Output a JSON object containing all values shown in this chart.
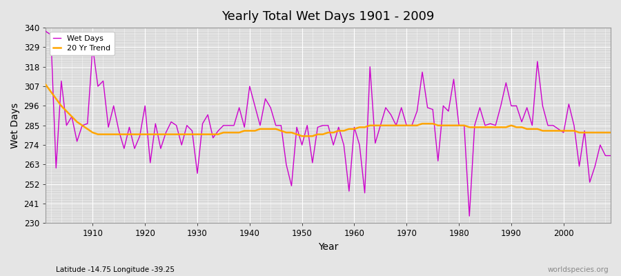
{
  "title": "Yearly Total Wet Days 1901 - 2009",
  "xlabel": "Year",
  "ylabel": "Wet Days",
  "background_color": "#e5e5e5",
  "plot_bg_color": "#d8d8d8",
  "wet_days_color": "#cc00cc",
  "trend_color": "#ffa500",
  "ylim": [
    230,
    340
  ],
  "yticks": [
    230,
    241,
    252,
    263,
    274,
    285,
    296,
    307,
    318,
    329,
    340
  ],
  "xlim": [
    1901,
    2009
  ],
  "xticks": [
    1910,
    1920,
    1930,
    1940,
    1950,
    1960,
    1970,
    1980,
    1990,
    2000
  ],
  "footer_left": "Latitude -14.75 Longitude -39.25",
  "footer_right": "worldspecies.org",
  "years": [
    1901,
    1902,
    1903,
    1904,
    1905,
    1906,
    1907,
    1908,
    1909,
    1910,
    1911,
    1912,
    1913,
    1914,
    1915,
    1916,
    1917,
    1918,
    1919,
    1920,
    1921,
    1922,
    1923,
    1924,
    1925,
    1926,
    1927,
    1928,
    1929,
    1930,
    1931,
    1932,
    1933,
    1934,
    1935,
    1936,
    1937,
    1938,
    1939,
    1940,
    1941,
    1942,
    1943,
    1944,
    1945,
    1946,
    1947,
    1948,
    1949,
    1950,
    1951,
    1952,
    1953,
    1954,
    1955,
    1956,
    1957,
    1958,
    1959,
    1960,
    1961,
    1962,
    1963,
    1964,
    1965,
    1966,
    1967,
    1968,
    1969,
    1970,
    1971,
    1972,
    1973,
    1974,
    1975,
    1976,
    1977,
    1978,
    1979,
    1980,
    1981,
    1982,
    1983,
    1984,
    1985,
    1986,
    1987,
    1988,
    1989,
    1990,
    1991,
    1992,
    1993,
    1994,
    1995,
    1996,
    1997,
    1998,
    1999,
    2000,
    2001,
    2002,
    2003,
    2004,
    2005,
    2006,
    2007,
    2008,
    2009
  ],
  "wet_days": [
    338,
    336,
    261,
    310,
    285,
    290,
    276,
    285,
    286,
    329,
    307,
    310,
    284,
    296,
    282,
    272,
    284,
    272,
    279,
    296,
    264,
    286,
    272,
    281,
    287,
    285,
    274,
    285,
    282,
    258,
    286,
    291,
    278,
    282,
    285,
    285,
    285,
    295,
    284,
    307,
    296,
    285,
    300,
    295,
    285,
    285,
    263,
    251,
    284,
    274,
    285,
    264,
    284,
    285,
    285,
    274,
    284,
    274,
    248,
    284,
    274,
    247,
    318,
    275,
    285,
    295,
    291,
    285,
    295,
    285,
    285,
    293,
    315,
    295,
    294,
    265,
    296,
    293,
    311,
    285,
    285,
    234,
    285,
    295,
    285,
    286,
    285,
    296,
    309,
    296,
    296,
    287,
    295,
    285,
    321,
    296,
    285,
    285,
    283,
    281,
    297,
    285,
    262,
    282,
    253,
    262,
    274,
    268,
    268
  ],
  "trend_years": [
    1901,
    1902,
    1903,
    1904,
    1905,
    1906,
    1907,
    1908,
    1909,
    1910,
    1911,
    1912,
    1913,
    1914,
    1915,
    1916,
    1917,
    1918,
    1919,
    1920,
    1921,
    1922,
    1923,
    1924,
    1925,
    1926,
    1927,
    1928,
    1929,
    1930,
    1931,
    1932,
    1933,
    1934,
    1935,
    1936,
    1937,
    1938,
    1939,
    1940,
    1941,
    1942,
    1943,
    1944,
    1945,
    1946,
    1947,
    1948,
    1949,
    1950,
    1951,
    1952,
    1953,
    1954,
    1955,
    1956,
    1957,
    1958,
    1959,
    1960,
    1961,
    1962,
    1963,
    1964,
    1965,
    1966,
    1967,
    1968,
    1969,
    1970,
    1971,
    1972,
    1973,
    1974,
    1975,
    1976,
    1977,
    1978,
    1979,
    1980,
    1981,
    1982,
    1983,
    1984,
    1985,
    1986,
    1987,
    1988,
    1989,
    1990,
    1991,
    1992,
    1993,
    1994,
    1995,
    1996,
    1997,
    1998,
    1999,
    2000,
    2001,
    2002,
    2003,
    2004,
    2005,
    2006,
    2007,
    2008,
    2009
  ],
  "trend_values": [
    308,
    304,
    300,
    296,
    293,
    290,
    287,
    285,
    283,
    281,
    280,
    280,
    280,
    280,
    280,
    280,
    280,
    280,
    280,
    280,
    280,
    280,
    280,
    280,
    280,
    280,
    280,
    280,
    280,
    280,
    280,
    280,
    280,
    280,
    281,
    281,
    281,
    281,
    282,
    282,
    282,
    283,
    283,
    283,
    283,
    282,
    281,
    281,
    280,
    279,
    279,
    279,
    280,
    280,
    281,
    281,
    282,
    282,
    283,
    283,
    284,
    284,
    285,
    285,
    285,
    285,
    285,
    285,
    285,
    285,
    285,
    285,
    286,
    286,
    286,
    285,
    285,
    285,
    285,
    285,
    285,
    284,
    284,
    284,
    284,
    284,
    284,
    284,
    284,
    285,
    284,
    284,
    283,
    283,
    283,
    282,
    282,
    282,
    282,
    282,
    282,
    282,
    281,
    281,
    281,
    281,
    281,
    281,
    281
  ]
}
